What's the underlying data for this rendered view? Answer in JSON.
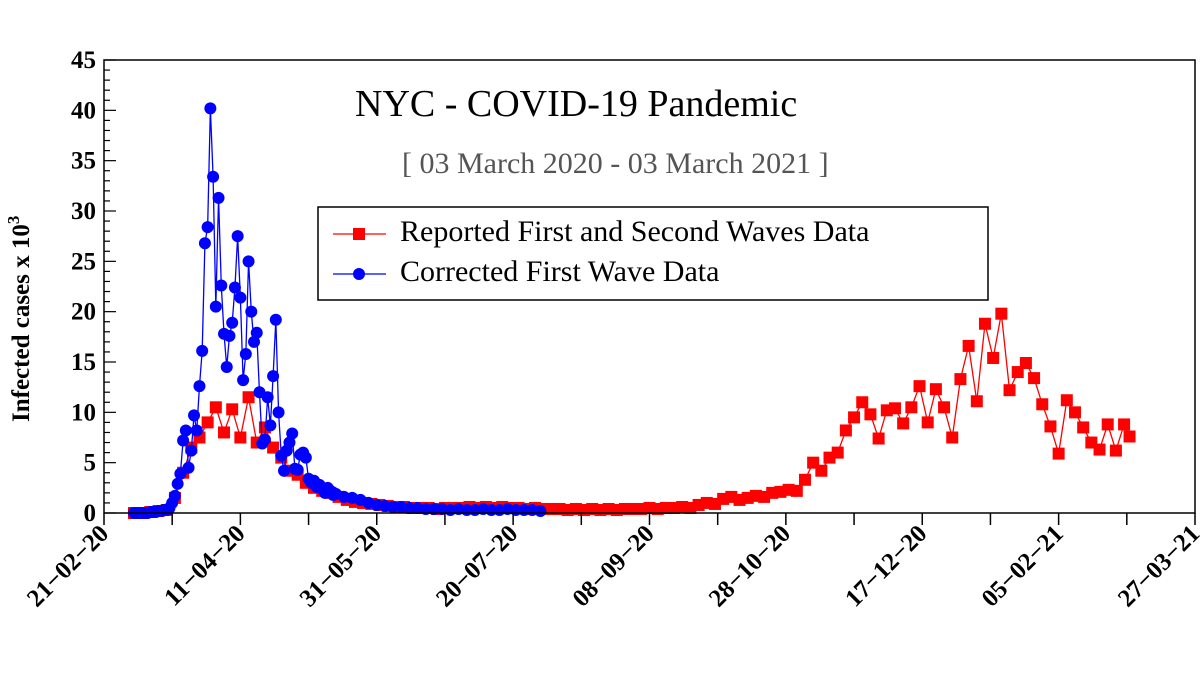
{
  "chart_data": {
    "type": "line",
    "title": "NYC - COVID-19 Pandemic",
    "subtitle": "[ 03 March 2020 - 03 March 2021 ]",
    "xlabel": "",
    "ylabel": "Infected cases x 10",
    "ylabel_superscript": "3",
    "xlim": [
      "2020-02-21",
      "2021-03-27"
    ],
    "ylim": [
      0,
      45
    ],
    "x_ticks": [
      "2020-02-21",
      "2020-04-11",
      "2020-05-31",
      "2020-07-20",
      "2020-09-08",
      "2020-10-28",
      "2020-12-17",
      "2021-02-05",
      "2021-03-27"
    ],
    "x_tick_labels": [
      "21−02−20",
      "11−04−20",
      "31−05−20",
      "20−07−20",
      "08−09−20",
      "28−10−20",
      "17−12−20",
      "05−02−21",
      "27−03−21"
    ],
    "y_ticks": [
      0,
      5,
      10,
      15,
      20,
      25,
      30,
      35,
      40,
      45
    ],
    "y_tick_labels": [
      "0",
      "5",
      "10",
      "15",
      "20",
      "25",
      "30",
      "35",
      "40",
      "45"
    ],
    "grid": false,
    "legend_placement": "top-center",
    "series": [
      {
        "name": "Reported First and Second Waves Data",
        "color": "#ff0000",
        "marker": "square",
        "points": [
          [
            "2020-03-03",
            0.0
          ],
          [
            "2020-03-06",
            0.0
          ],
          [
            "2020-03-09",
            0.1
          ],
          [
            "2020-03-12",
            0.2
          ],
          [
            "2020-03-15",
            0.3
          ],
          [
            "2020-03-18",
            1.5
          ],
          [
            "2020-03-21",
            4.0
          ],
          [
            "2020-03-24",
            6.5
          ],
          [
            "2020-03-27",
            7.5
          ],
          [
            "2020-03-30",
            9.0
          ],
          [
            "2020-04-02",
            10.5
          ],
          [
            "2020-04-05",
            8.0
          ],
          [
            "2020-04-08",
            10.3
          ],
          [
            "2020-04-11",
            7.5
          ],
          [
            "2020-04-14",
            11.5
          ],
          [
            "2020-04-17",
            7.0
          ],
          [
            "2020-04-20",
            8.5
          ],
          [
            "2020-04-23",
            6.5
          ],
          [
            "2020-04-26",
            5.5
          ],
          [
            "2020-04-29",
            4.2
          ],
          [
            "2020-05-02",
            3.8
          ],
          [
            "2020-05-05",
            3.0
          ],
          [
            "2020-05-08",
            2.5
          ],
          [
            "2020-05-11",
            2.2
          ],
          [
            "2020-05-14",
            2.0
          ],
          [
            "2020-05-17",
            1.6
          ],
          [
            "2020-05-20",
            1.3
          ],
          [
            "2020-05-23",
            1.1
          ],
          [
            "2020-05-26",
            1.0
          ],
          [
            "2020-05-29",
            0.9
          ],
          [
            "2020-06-01",
            0.8
          ],
          [
            "2020-06-04",
            0.7
          ],
          [
            "2020-06-07",
            0.6
          ],
          [
            "2020-06-10",
            0.6
          ],
          [
            "2020-06-13",
            0.5
          ],
          [
            "2020-06-16",
            0.5
          ],
          [
            "2020-06-19",
            0.5
          ],
          [
            "2020-06-22",
            0.4
          ],
          [
            "2020-06-25",
            0.5
          ],
          [
            "2020-06-28",
            0.5
          ],
          [
            "2020-07-01",
            0.5
          ],
          [
            "2020-07-04",
            0.6
          ],
          [
            "2020-07-07",
            0.5
          ],
          [
            "2020-07-10",
            0.6
          ],
          [
            "2020-07-13",
            0.5
          ],
          [
            "2020-07-16",
            0.6
          ],
          [
            "2020-07-19",
            0.5
          ],
          [
            "2020-07-22",
            0.5
          ],
          [
            "2020-07-25",
            0.4
          ],
          [
            "2020-07-28",
            0.5
          ],
          [
            "2020-07-31",
            0.4
          ],
          [
            "2020-08-03",
            0.4
          ],
          [
            "2020-08-06",
            0.4
          ],
          [
            "2020-08-09",
            0.3
          ],
          [
            "2020-08-12",
            0.4
          ],
          [
            "2020-08-15",
            0.3
          ],
          [
            "2020-08-18",
            0.4
          ],
          [
            "2020-08-21",
            0.3
          ],
          [
            "2020-08-24",
            0.4
          ],
          [
            "2020-08-27",
            0.3
          ],
          [
            "2020-08-30",
            0.4
          ],
          [
            "2020-09-02",
            0.4
          ],
          [
            "2020-09-05",
            0.4
          ],
          [
            "2020-09-08",
            0.5
          ],
          [
            "2020-09-11",
            0.4
          ],
          [
            "2020-09-14",
            0.5
          ],
          [
            "2020-09-17",
            0.5
          ],
          [
            "2020-09-20",
            0.6
          ],
          [
            "2020-09-23",
            0.5
          ],
          [
            "2020-09-26",
            0.8
          ],
          [
            "2020-09-29",
            1.0
          ],
          [
            "2020-10-02",
            0.9
          ],
          [
            "2020-10-05",
            1.4
          ],
          [
            "2020-10-08",
            1.6
          ],
          [
            "2020-10-11",
            1.3
          ],
          [
            "2020-10-14",
            1.5
          ],
          [
            "2020-10-17",
            1.7
          ],
          [
            "2020-10-20",
            1.6
          ],
          [
            "2020-10-23",
            2.0
          ],
          [
            "2020-10-26",
            2.1
          ],
          [
            "2020-10-29",
            2.3
          ],
          [
            "2020-11-01",
            2.2
          ],
          [
            "2020-11-04",
            3.3
          ],
          [
            "2020-11-07",
            5.0
          ],
          [
            "2020-11-10",
            4.2
          ],
          [
            "2020-11-13",
            5.5
          ],
          [
            "2020-11-16",
            6.0
          ],
          [
            "2020-11-19",
            8.2
          ],
          [
            "2020-11-22",
            9.5
          ],
          [
            "2020-11-25",
            11.0
          ],
          [
            "2020-11-28",
            9.8
          ],
          [
            "2020-12-01",
            7.4
          ],
          [
            "2020-12-04",
            10.2
          ],
          [
            "2020-12-07",
            10.4
          ],
          [
            "2020-12-10",
            8.9
          ],
          [
            "2020-12-13",
            10.5
          ],
          [
            "2020-12-16",
            12.6
          ],
          [
            "2020-12-19",
            9.0
          ],
          [
            "2020-12-22",
            12.3
          ],
          [
            "2020-12-25",
            10.5
          ],
          [
            "2020-12-28",
            7.5
          ],
          [
            "2020-12-31",
            13.3
          ],
          [
            "2021-01-03",
            16.6
          ],
          [
            "2021-01-06",
            11.1
          ],
          [
            "2021-01-09",
            18.8
          ],
          [
            "2021-01-12",
            15.4
          ],
          [
            "2021-01-15",
            19.8
          ],
          [
            "2021-01-18",
            12.2
          ],
          [
            "2021-01-21",
            14.0
          ],
          [
            "2021-01-24",
            14.9
          ],
          [
            "2021-01-27",
            13.4
          ],
          [
            "2021-01-30",
            10.8
          ],
          [
            "2021-02-02",
            8.6
          ],
          [
            "2021-02-05",
            5.9
          ],
          [
            "2021-02-08",
            11.2
          ],
          [
            "2021-02-11",
            10.0
          ],
          [
            "2021-02-14",
            8.5
          ],
          [
            "2021-02-17",
            7.0
          ],
          [
            "2021-02-20",
            6.3
          ],
          [
            "2021-02-23",
            8.8
          ],
          [
            "2021-02-26",
            6.2
          ],
          [
            "2021-03-01",
            8.8
          ],
          [
            "2021-03-03",
            7.6
          ]
        ]
      },
      {
        "name": "Corrected First Wave Data",
        "color": "#0000ff",
        "marker": "circle",
        "points": [
          [
            "2020-03-03",
            0.0
          ],
          [
            "2020-03-04",
            0.0
          ],
          [
            "2020-03-05",
            0.0
          ],
          [
            "2020-03-06",
            0.0
          ],
          [
            "2020-03-07",
            0.0
          ],
          [
            "2020-03-08",
            0.0
          ],
          [
            "2020-03-09",
            0.1
          ],
          [
            "2020-03-10",
            0.1
          ],
          [
            "2020-03-11",
            0.1
          ],
          [
            "2020-03-12",
            0.2
          ],
          [
            "2020-03-13",
            0.2
          ],
          [
            "2020-03-14",
            0.3
          ],
          [
            "2020-03-15",
            0.3
          ],
          [
            "2020-03-16",
            0.5
          ],
          [
            "2020-03-17",
            1.0
          ],
          [
            "2020-03-18",
            1.7
          ],
          [
            "2020-03-19",
            2.9
          ],
          [
            "2020-03-20",
            3.9
          ],
          [
            "2020-03-21",
            7.2
          ],
          [
            "2020-03-22",
            8.2
          ],
          [
            "2020-03-23",
            4.5
          ],
          [
            "2020-03-24",
            6.2
          ],
          [
            "2020-03-25",
            9.7
          ],
          [
            "2020-03-26",
            8.2
          ],
          [
            "2020-03-27",
            12.6
          ],
          [
            "2020-03-28",
            16.1
          ],
          [
            "2020-03-29",
            26.8
          ],
          [
            "2020-03-30",
            28.4
          ],
          [
            "2020-03-31",
            40.2
          ],
          [
            "2020-04-01",
            33.4
          ],
          [
            "2020-04-02",
            20.5
          ],
          [
            "2020-04-03",
            31.3
          ],
          [
            "2020-04-04",
            22.6
          ],
          [
            "2020-04-05",
            17.8
          ],
          [
            "2020-04-06",
            14.5
          ],
          [
            "2020-04-07",
            17.6
          ],
          [
            "2020-04-08",
            18.9
          ],
          [
            "2020-04-09",
            22.4
          ],
          [
            "2020-04-10",
            27.5
          ],
          [
            "2020-04-11",
            21.4
          ],
          [
            "2020-04-12",
            13.2
          ],
          [
            "2020-04-13",
            15.8
          ],
          [
            "2020-04-14",
            25.0
          ],
          [
            "2020-04-15",
            20.0
          ],
          [
            "2020-04-16",
            17.0
          ],
          [
            "2020-04-17",
            17.9
          ],
          [
            "2020-04-18",
            12.0
          ],
          [
            "2020-04-19",
            6.9
          ],
          [
            "2020-04-20",
            7.3
          ],
          [
            "2020-04-21",
            11.5
          ],
          [
            "2020-04-22",
            8.7
          ],
          [
            "2020-04-23",
            13.6
          ],
          [
            "2020-04-24",
            19.2
          ],
          [
            "2020-04-25",
            10.0
          ],
          [
            "2020-04-26",
            5.7
          ],
          [
            "2020-04-27",
            4.2
          ],
          [
            "2020-04-28",
            6.2
          ],
          [
            "2020-04-29",
            7.0
          ],
          [
            "2020-04-30",
            7.9
          ],
          [
            "2020-05-01",
            4.4
          ],
          [
            "2020-05-02",
            4.3
          ],
          [
            "2020-05-03",
            5.8
          ],
          [
            "2020-05-04",
            6.0
          ],
          [
            "2020-05-05",
            5.5
          ],
          [
            "2020-05-06",
            3.4
          ],
          [
            "2020-05-07",
            3.0
          ],
          [
            "2020-05-08",
            3.2
          ],
          [
            "2020-05-09",
            2.6
          ],
          [
            "2020-05-10",
            2.8
          ],
          [
            "2020-05-11",
            2.4
          ],
          [
            "2020-05-12",
            2.0
          ],
          [
            "2020-05-13",
            2.5
          ],
          [
            "2020-05-14",
            2.2
          ],
          [
            "2020-05-15",
            1.8
          ],
          [
            "2020-05-16",
            1.9
          ],
          [
            "2020-05-19",
            1.6
          ],
          [
            "2020-05-22",
            1.5
          ],
          [
            "2020-05-25",
            1.3
          ],
          [
            "2020-05-28",
            1.0
          ],
          [
            "2020-05-31",
            0.8
          ],
          [
            "2020-06-03",
            0.7
          ],
          [
            "2020-06-06",
            0.6
          ],
          [
            "2020-06-09",
            0.6
          ],
          [
            "2020-06-12",
            0.5
          ],
          [
            "2020-06-15",
            0.5
          ],
          [
            "2020-06-18",
            0.4
          ],
          [
            "2020-06-21",
            0.4
          ],
          [
            "2020-06-24",
            0.4
          ],
          [
            "2020-06-27",
            0.3
          ],
          [
            "2020-06-30",
            0.4
          ],
          [
            "2020-07-03",
            0.3
          ],
          [
            "2020-07-06",
            0.3
          ],
          [
            "2020-07-09",
            0.4
          ],
          [
            "2020-07-12",
            0.3
          ],
          [
            "2020-07-15",
            0.3
          ],
          [
            "2020-07-18",
            0.4
          ],
          [
            "2020-07-21",
            0.3
          ],
          [
            "2020-07-24",
            0.3
          ],
          [
            "2020-07-27",
            0.3
          ],
          [
            "2020-07-30",
            0.2
          ]
        ]
      }
    ]
  }
}
